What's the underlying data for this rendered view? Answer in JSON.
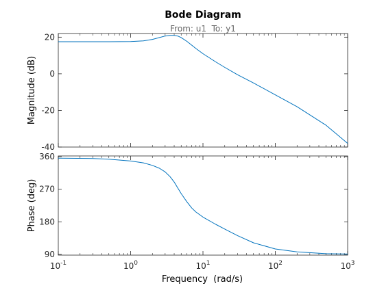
{
  "chart_data": {
    "type": "line",
    "title": "Bode Diagram",
    "subtitle": "From: u1  To: y1",
    "xlabel": "Frequency  (rad/s)",
    "xscale": "log",
    "xlim": [
      0.1,
      1000
    ],
    "xticks": [
      {
        "base": "10",
        "exp": "-1"
      },
      {
        "base": "10",
        "exp": "0"
      },
      {
        "base": "10",
        "exp": "1"
      },
      {
        "base": "10",
        "exp": "2"
      },
      {
        "base": "10",
        "exp": "3"
      }
    ],
    "line_color": "#0072bd",
    "panels": [
      {
        "id": "magnitude",
        "ylabel": "Magnitude (dB)",
        "ylim": [
          -40,
          22
        ],
        "yticks": [
          "20",
          "0",
          "-20",
          "-40"
        ],
        "ytick_values": [
          20,
          0,
          -20,
          -40
        ],
        "series": {
          "x": [
            0.1,
            0.5,
            1,
            1.5,
            2,
            2.5,
            3,
            3.5,
            4,
            4.5,
            5,
            6,
            7,
            8,
            10,
            15,
            20,
            30,
            50,
            100,
            200,
            500,
            1000
          ],
          "y": [
            17.5,
            17.5,
            17.6,
            18.0,
            18.8,
            19.8,
            20.6,
            21.0,
            21.0,
            20.6,
            19.8,
            17.7,
            15.6,
            13.8,
            11.0,
            6.5,
            3.5,
            -0.5,
            -5.0,
            -11.5,
            -18.0,
            -28.0,
            -38.0
          ]
        }
      },
      {
        "id": "phase",
        "ylabel": "Phase (deg)",
        "ylim": [
          88,
          362
        ],
        "yticks": [
          "360",
          "270",
          "180",
          "90"
        ],
        "ytick_values": [
          360,
          270,
          180,
          90
        ],
        "series": {
          "x": [
            0.1,
            0.3,
            0.5,
            1,
            1.5,
            2,
            2.5,
            3,
            3.5,
            4,
            5,
            6,
            7,
            8,
            10,
            15,
            20,
            30,
            50,
            100,
            200,
            500,
            1000
          ],
          "y": [
            356,
            355,
            353,
            348,
            343,
            336,
            328,
            318,
            305,
            290,
            258,
            235,
            218,
            207,
            193,
            173,
            160,
            142,
            122,
            105,
            97,
            92,
            91
          ]
        }
      }
    ]
  }
}
